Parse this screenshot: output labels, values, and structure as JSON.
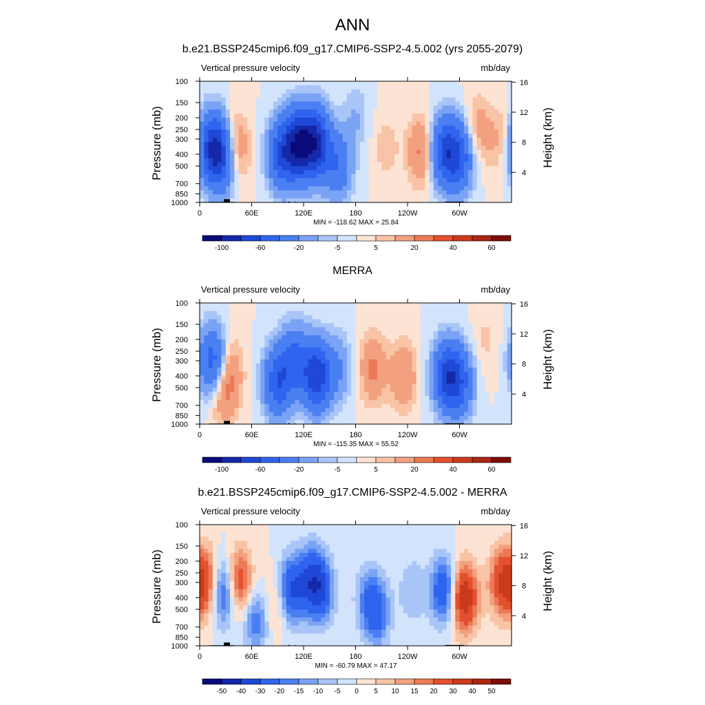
{
  "figure_title": "ANN",
  "chart_data": [
    {
      "type": "heatmap",
      "title": "b.e21.BSSP245cmip6.f09_g17.CMIP6-SSP2-4.5.002 (yrs 2055-2079)",
      "left_label": "Vertical pressure velocity",
      "right_label": "mb/day",
      "ylabel": "Pressure (mb)",
      "y2label": "Height (km)",
      "xticks": [
        "0",
        "60E",
        "120E",
        "180",
        "120W",
        "60W"
      ],
      "yticks": [
        "100",
        "150",
        "200",
        "250",
        "300",
        "400",
        "500",
        "700",
        "850",
        "1000"
      ],
      "y2ticks": [
        "16",
        "12",
        "8",
        "4"
      ],
      "stats": "MIN = -118.62  MAX =  25.84",
      "min": -118.62,
      "max": 25.84,
      "colorbar_labels": [
        "-100",
        "-60",
        "-20",
        "-5",
        "5",
        "20",
        "40",
        "60"
      ],
      "levels": [
        -120,
        -100,
        -80,
        -60,
        -40,
        -20,
        -10,
        -5,
        0,
        5,
        10,
        20,
        30,
        40,
        50,
        60,
        70
      ],
      "features": [
        {
          "lon": 15,
          "p": 350,
          "value": -70
        },
        {
          "lon": 25,
          "p": 450,
          "value": -40
        },
        {
          "lon": 42,
          "p": 350,
          "value": 20
        },
        {
          "lon": 95,
          "p": 400,
          "value": -60
        },
        {
          "lon": 115,
          "p": 330,
          "value": -90
        },
        {
          "lon": 135,
          "p": 330,
          "value": -80
        },
        {
          "lon": 160,
          "p": 500,
          "value": -35
        },
        {
          "lon": 180,
          "p": 200,
          "value": -10
        },
        {
          "lon": 215,
          "p": 350,
          "value": 8
        },
        {
          "lon": 255,
          "p": 380,
          "value": 22
        },
        {
          "lon": 283,
          "p": 380,
          "value": -60
        },
        {
          "lon": 300,
          "p": 420,
          "value": -50
        },
        {
          "lon": 320,
          "p": 250,
          "value": 15
        },
        {
          "lon": 345,
          "p": 300,
          "value": 10
        }
      ]
    },
    {
      "type": "heatmap",
      "title": "MERRA",
      "left_label": "Vertical pressure velocity",
      "right_label": "mb/day",
      "ylabel": "Pressure (mb)",
      "y2label": "Height (km)",
      "xticks": [
        "0",
        "60E",
        "120E",
        "180",
        "120W",
        "60W"
      ],
      "yticks": [
        "100",
        "150",
        "200",
        "250",
        "300",
        "400",
        "500",
        "700",
        "850",
        "1000"
      ],
      "y2ticks": [
        "16",
        "12",
        "8",
        "4"
      ],
      "stats": "MIN = -115.35  MAX =  55.52",
      "min": -115.35,
      "max": 55.52,
      "colorbar_labels": [
        "-100",
        "-60",
        "-20",
        "-5",
        "5",
        "20",
        "40",
        "60"
      ],
      "levels": [
        -120,
        -100,
        -80,
        -60,
        -40,
        -20,
        -10,
        -5,
        0,
        5,
        10,
        20,
        30,
        40,
        50,
        60,
        70
      ],
      "features": [
        {
          "lon": 15,
          "p": 300,
          "value": -50
        },
        {
          "lon": 28,
          "p": 550,
          "value": 20
        },
        {
          "lon": 35,
          "p": 350,
          "value": 15
        },
        {
          "lon": 90,
          "p": 450,
          "value": -55
        },
        {
          "lon": 110,
          "p": 300,
          "value": -45
        },
        {
          "lon": 135,
          "p": 400,
          "value": -75
        },
        {
          "lon": 160,
          "p": 350,
          "value": -20
        },
        {
          "lon": 200,
          "p": 350,
          "value": 22
        },
        {
          "lon": 235,
          "p": 400,
          "value": 20
        },
        {
          "lon": 285,
          "p": 400,
          "value": -60
        },
        {
          "lon": 300,
          "p": 450,
          "value": -45
        },
        {
          "lon": 330,
          "p": 200,
          "value": 6
        }
      ]
    },
    {
      "type": "heatmap",
      "title": "b.e21.BSSP245cmip6.f09_g17.CMIP6-SSP2-4.5.002 - MERRA",
      "left_label": "Vertical pressure velocity",
      "right_label": "mb/day",
      "ylabel": "Pressure (mb)",
      "y2label": "Height (km)",
      "xticks": [
        "0",
        "60E",
        "120E",
        "180",
        "120W",
        "60W"
      ],
      "yticks": [
        "100",
        "150",
        "200",
        "250",
        "300",
        "400",
        "500",
        "700",
        "850",
        "1000"
      ],
      "y2ticks": [
        "16",
        "12",
        "8",
        "4"
      ],
      "stats": "MIN = -60.79  MAX =  47.17",
      "min": -60.79,
      "max": 47.17,
      "colorbar_labels": [
        "-50",
        "-40",
        "-30",
        "-20",
        "-15",
        "-10",
        "-5",
        "0",
        "5",
        "10",
        "15",
        "20",
        "30",
        "40",
        "50"
      ],
      "levels": [
        -60,
        -50,
        -40,
        -30,
        -20,
        -15,
        -10,
        -5,
        0,
        5,
        10,
        15,
        20,
        30,
        40,
        50,
        60
      ],
      "features": [
        {
          "lon": 8,
          "p": 300,
          "value": 25
        },
        {
          "lon": 28,
          "p": 350,
          "value": -30
        },
        {
          "lon": 45,
          "p": 300,
          "value": 30
        },
        {
          "lon": 65,
          "p": 600,
          "value": -20
        },
        {
          "lon": 88,
          "p": 450,
          "value": 12
        },
        {
          "lon": 105,
          "p": 350,
          "value": -30
        },
        {
          "lon": 128,
          "p": 280,
          "value": -25
        },
        {
          "lon": 140,
          "p": 350,
          "value": -25
        },
        {
          "lon": 195,
          "p": 400,
          "value": -15
        },
        {
          "lon": 205,
          "p": 550,
          "value": -20
        },
        {
          "lon": 245,
          "p": 350,
          "value": -10
        },
        {
          "lon": 282,
          "p": 350,
          "value": -30
        },
        {
          "lon": 305,
          "p": 400,
          "value": 40
        },
        {
          "lon": 350,
          "p": 300,
          "value": 30
        }
      ]
    }
  ]
}
